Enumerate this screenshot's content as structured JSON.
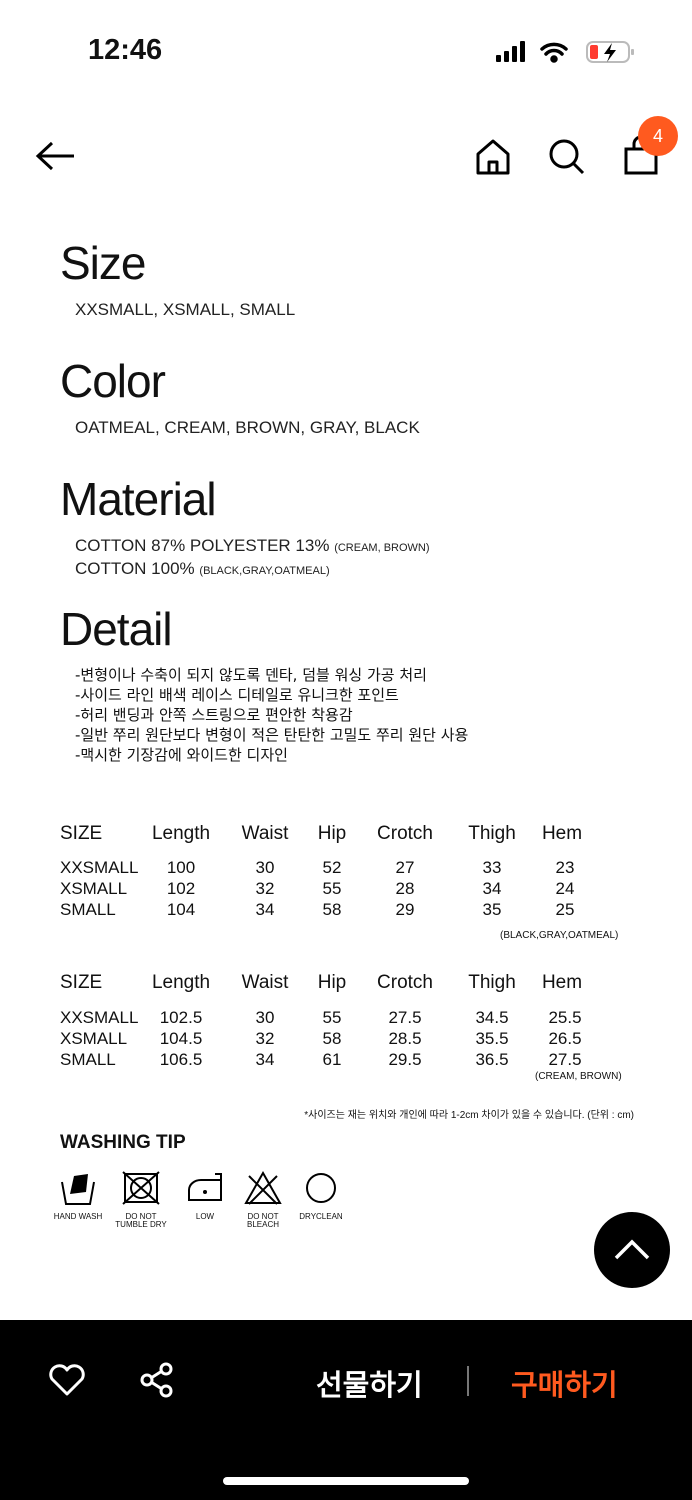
{
  "status_bar": {
    "time": "12:46"
  },
  "nav": {
    "cart_count": "4",
    "badge_color": "#ff5a1f"
  },
  "sections": {
    "size": {
      "title": "Size",
      "value": "XXSMALL, XSMALL, SMALL"
    },
    "color": {
      "title": "Color",
      "value": "OATMEAL, CREAM, BROWN, GRAY, BLACK"
    },
    "material": {
      "title": "Material",
      "line1": "COTTON 87% POLYESTER 13%",
      "line1_note": "(CREAM, BROWN)",
      "line2": "COTTON 100%",
      "line2_note": "(BLACK,GRAY,OATMEAL)"
    },
    "detail": {
      "title": "Detail",
      "lines": [
        "-변형이나 수축이 되지 않도록 덴타, 덤블 워싱 가공 처리",
        "-사이드 라인 배색 레이스 디테일로 유니크한 포인트",
        "-허리 밴딩과 안쪽 스트링으로 편안한 착용감",
        "-일반 쭈리 원단보다 변형이 적은 탄탄한 고밀도 쭈리 원단 사용",
        "-맥시한 기장감에 와이드한 디자인"
      ]
    }
  },
  "tables": [
    {
      "headers": [
        "SIZE",
        "Length",
        "Waist",
        "Hip",
        "Crotch",
        "Thigh",
        "Hem"
      ],
      "rows": [
        [
          "XXSMALL",
          "100",
          "30",
          "52",
          "27",
          "33",
          "23"
        ],
        [
          "XSMALL",
          "102",
          "32",
          "55",
          "28",
          "34",
          "24"
        ],
        [
          "SMALL",
          "104",
          "34",
          "58",
          "29",
          "35",
          "25"
        ]
      ],
      "note": "(BLACK,GRAY,OATMEAL)"
    },
    {
      "headers": [
        "SIZE",
        "Length",
        "Waist",
        "Hip",
        "Crotch",
        "Thigh",
        "Hem"
      ],
      "rows": [
        [
          "XXSMALL",
          "102.5",
          "30",
          "55",
          "27.5",
          "34.5",
          "25.5"
        ],
        [
          "XSMALL",
          "104.5",
          "32",
          "58",
          "28.5",
          "35.5",
          "26.5"
        ],
        [
          "SMALL",
          "106.5",
          "34",
          "61",
          "29.5",
          "36.5",
          "27.5"
        ]
      ],
      "note": "(CREAM, BROWN)"
    }
  ],
  "size_note": "*사이즈는 재는 위치와 개인에 따라 1-2cm 차이가 있을 수 있습니다. (단위 : cm)",
  "washing": {
    "title": "WASHING TIP",
    "icons": [
      {
        "icon": "hand-wash-icon",
        "label": "HAND WASH"
      },
      {
        "icon": "do-not-tumble-dry-icon",
        "label": "DO NOT TUMBLE DRY"
      },
      {
        "icon": "iron-low-icon",
        "label": "LOW"
      },
      {
        "icon": "do-not-bleach-icon",
        "label": "DO NOT BLEACH"
      },
      {
        "icon": "dryclean-icon",
        "label": "DRYCLEAN"
      }
    ]
  },
  "bottom_bar": {
    "gift_label": "선물하기",
    "buy_label": "구매하기",
    "buy_color": "#ff5a1f"
  }
}
